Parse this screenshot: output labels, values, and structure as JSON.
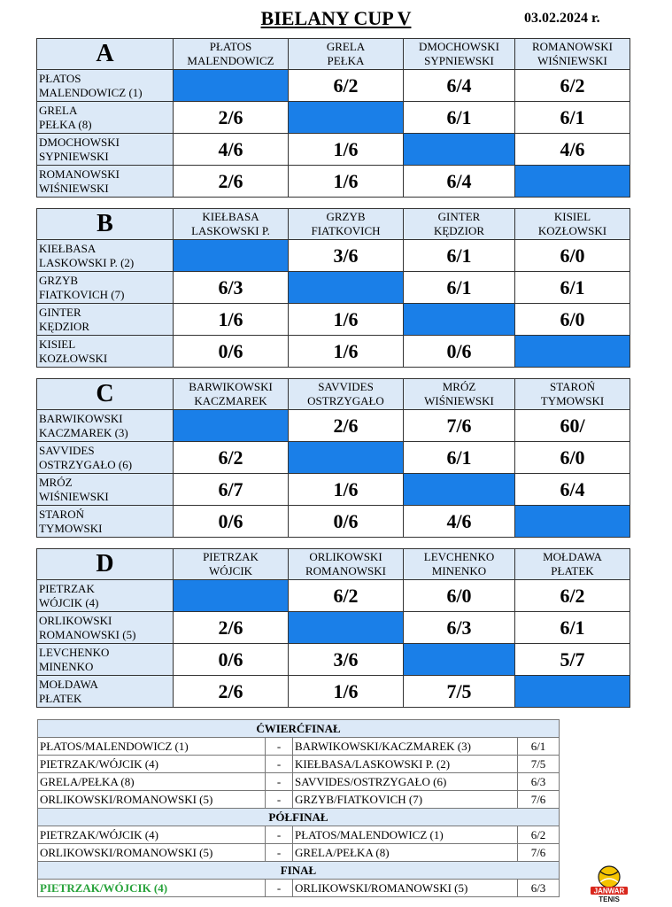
{
  "header": {
    "title": "BIELANY CUP V",
    "date": "03.02.2024 r."
  },
  "groups": [
    {
      "letter": "A",
      "columns": [
        [
          "PŁATOS",
          "MALENDOWICZ"
        ],
        [
          "GRELA",
          "PEŁKA"
        ],
        [
          "DMOCHOWSKI",
          "SYPNIEWSKI"
        ],
        [
          "ROMANOWSKI",
          "WIŚNIEWSKI"
        ]
      ],
      "rows": [
        {
          "name": [
            "PŁATOS",
            "MALENDOWICZ (1)"
          ],
          "scores": [
            "",
            "6/2",
            "6/4",
            "6/2"
          ]
        },
        {
          "name": [
            "GRELA",
            "PEŁKA (8)"
          ],
          "scores": [
            "2/6",
            "",
            "6/1",
            "6/1"
          ]
        },
        {
          "name": [
            "DMOCHOWSKI",
            "SYPNIEWSKI"
          ],
          "scores": [
            "4/6",
            "1/6",
            "",
            "4/6"
          ]
        },
        {
          "name": [
            "ROMANOWSKI",
            "WIŚNIEWSKI"
          ],
          "scores": [
            "2/6",
            "1/6",
            "6/4",
            ""
          ]
        }
      ]
    },
    {
      "letter": "B",
      "columns": [
        [
          "KIEŁBASA",
          "LASKOWSKI P."
        ],
        [
          "GRZYB",
          "FIATKOVICH"
        ],
        [
          "GINTER",
          "KĘDZIOR"
        ],
        [
          "KISIEL",
          "KOZŁOWSKI"
        ]
      ],
      "rows": [
        {
          "name": [
            "KIEŁBASA",
            "LASKOWSKI P. (2)"
          ],
          "scores": [
            "",
            "3/6",
            "6/1",
            "6/0"
          ]
        },
        {
          "name": [
            "GRZYB",
            "FIATKOVICH (7)"
          ],
          "scores": [
            "6/3",
            "",
            "6/1",
            "6/1"
          ]
        },
        {
          "name": [
            "GINTER",
            "KĘDZIOR"
          ],
          "scores": [
            "1/6",
            "1/6",
            "",
            "6/0"
          ]
        },
        {
          "name": [
            "KISIEL",
            "KOZŁOWSKI"
          ],
          "scores": [
            "0/6",
            "1/6",
            "0/6",
            ""
          ]
        }
      ]
    },
    {
      "letter": "C",
      "columns": [
        [
          "BARWIKOWSKI",
          "KACZMAREK"
        ],
        [
          "SAVVIDES",
          "OSTRZYGAŁO"
        ],
        [
          "MRÓZ",
          "WIŚNIEWSKI"
        ],
        [
          "STAROŃ",
          "TYMOWSKI"
        ]
      ],
      "rows": [
        {
          "name": [
            "BARWIKOWSKI",
            "KACZMAREK (3)"
          ],
          "scores": [
            "",
            "2/6",
            "7/6",
            "60/"
          ]
        },
        {
          "name": [
            "SAVVIDES",
            "OSTRZYGAŁO (6)"
          ],
          "scores": [
            "6/2",
            "",
            "6/1",
            "6/0"
          ]
        },
        {
          "name": [
            "MRÓZ",
            "WIŚNIEWSKI"
          ],
          "scores": [
            "6/7",
            "1/6",
            "",
            "6/4"
          ]
        },
        {
          "name": [
            "STAROŃ",
            "TYMOWSKI"
          ],
          "scores": [
            "0/6",
            "0/6",
            "4/6",
            ""
          ]
        }
      ]
    },
    {
      "letter": "D",
      "columns": [
        [
          "PIETRZAK",
          "WÓJCIK"
        ],
        [
          "ORLIKOWSKI",
          "ROMANOWSKI"
        ],
        [
          "LEVCHENKO",
          "MINENKO"
        ],
        [
          "MOŁDAWA",
          "PŁATEK"
        ]
      ],
      "rows": [
        {
          "name": [
            "PIETRZAK",
            "WÓJCIK (4)"
          ],
          "scores": [
            "",
            "6/2",
            "6/0",
            "6/2"
          ]
        },
        {
          "name": [
            "ORLIKOWSKI",
            "ROMANOWSKI (5)"
          ],
          "scores": [
            "2/6",
            "",
            "6/3",
            "6/1"
          ]
        },
        {
          "name": [
            "LEVCHENKO",
            "MINENKO"
          ],
          "scores": [
            "0/6",
            "3/6",
            "",
            "5/7"
          ]
        },
        {
          "name": [
            "MOŁDAWA",
            "PŁATEK"
          ],
          "scores": [
            "2/6",
            "1/6",
            "7/5",
            ""
          ]
        }
      ]
    }
  ],
  "knockout": {
    "quarterfinal": {
      "label": "ĆWIERĆFINAŁ",
      "matches": [
        {
          "left": "PŁATOS/MALENDOWICZ (1)",
          "sep": "-",
          "right": "BARWIKOWSKI/KACZMAREK (3)",
          "result": "6/1"
        },
        {
          "left": "PIETRZAK/WÓJCIK (4)",
          "sep": "-",
          "right": "KIEŁBASA/LASKOWSKI P. (2)",
          "result": "7/5"
        },
        {
          "left": "GRELA/PEŁKA (8)",
          "sep": "-",
          "right": "SAVVIDES/OSTRZYGAŁO (6)",
          "result": "6/3"
        },
        {
          "left": "ORLIKOWSKI/ROMANOWSKI (5)",
          "sep": "-",
          "right": "GRZYB/FIATKOVICH (7)",
          "result": "7/6"
        }
      ]
    },
    "semifinal": {
      "label": "PÓŁFINAŁ",
      "matches": [
        {
          "left": "PIETRZAK/WÓJCIK (4)",
          "sep": "-",
          "right": "PŁATOS/MALENDOWICZ (1)",
          "result": "6/2"
        },
        {
          "left": "ORLIKOWSKI/ROMANOWSKI (5)",
          "sep": "-",
          "right": "GRELA/PEŁKA (8)",
          "result": "7/6"
        }
      ]
    },
    "final": {
      "label": "FINAŁ",
      "matches": [
        {
          "left": "PIETRZAK/WÓJCIK (4)",
          "sep": "-",
          "right": "ORLIKOWSKI/ROMANOWSKI (5)",
          "result": "6/3"
        }
      ]
    }
  },
  "logo": {
    "line1": "JANWAR",
    "line2": "TENIS",
    "icon": "tennis-ball-icon"
  },
  "colors": {
    "header_bg": "#dce9f7",
    "diagonal": "#1a7fe8",
    "winner": "#27a23a",
    "logo_yellow": "#f5c400",
    "logo_red": "#d9261c"
  }
}
